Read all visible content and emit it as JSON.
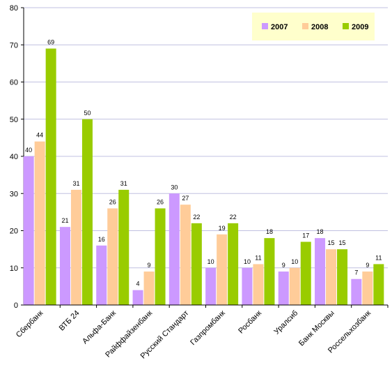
{
  "chart_data": {
    "type": "bar",
    "title": "",
    "xlabel": "",
    "ylabel": "",
    "ylim": [
      0,
      80
    ],
    "yticks": [
      0,
      10,
      20,
      30,
      40,
      50,
      60,
      70,
      80
    ],
    "grid": true,
    "legend_position": "top-right",
    "categories": [
      "Сбербанк",
      "ВТБ 24",
      "Альфа-Банк",
      "Райффайзенбанк",
      "Русский Стандарт",
      "Газпромбанк",
      "Росбанк",
      "Уралсиб",
      "Банк Москвы",
      "Россельхозбанк"
    ],
    "series": [
      {
        "name": "2007",
        "color": "#cc99ff",
        "values": [
          40,
          21,
          16,
          4,
          30,
          10,
          10,
          9,
          18,
          7
        ]
      },
      {
        "name": "2008",
        "color": "#ffcc99",
        "values": [
          44,
          31,
          26,
          9,
          27,
          19,
          11,
          10,
          15,
          9
        ]
      },
      {
        "name": "2009",
        "color": "#99cc00",
        "values": [
          69,
          50,
          31,
          26,
          22,
          22,
          18,
          17,
          15,
          11
        ]
      }
    ],
    "colors": {
      "plot_background": "#ffffff",
      "gridline": "#c0c0e0",
      "legend_background": "#ffffcc"
    }
  }
}
